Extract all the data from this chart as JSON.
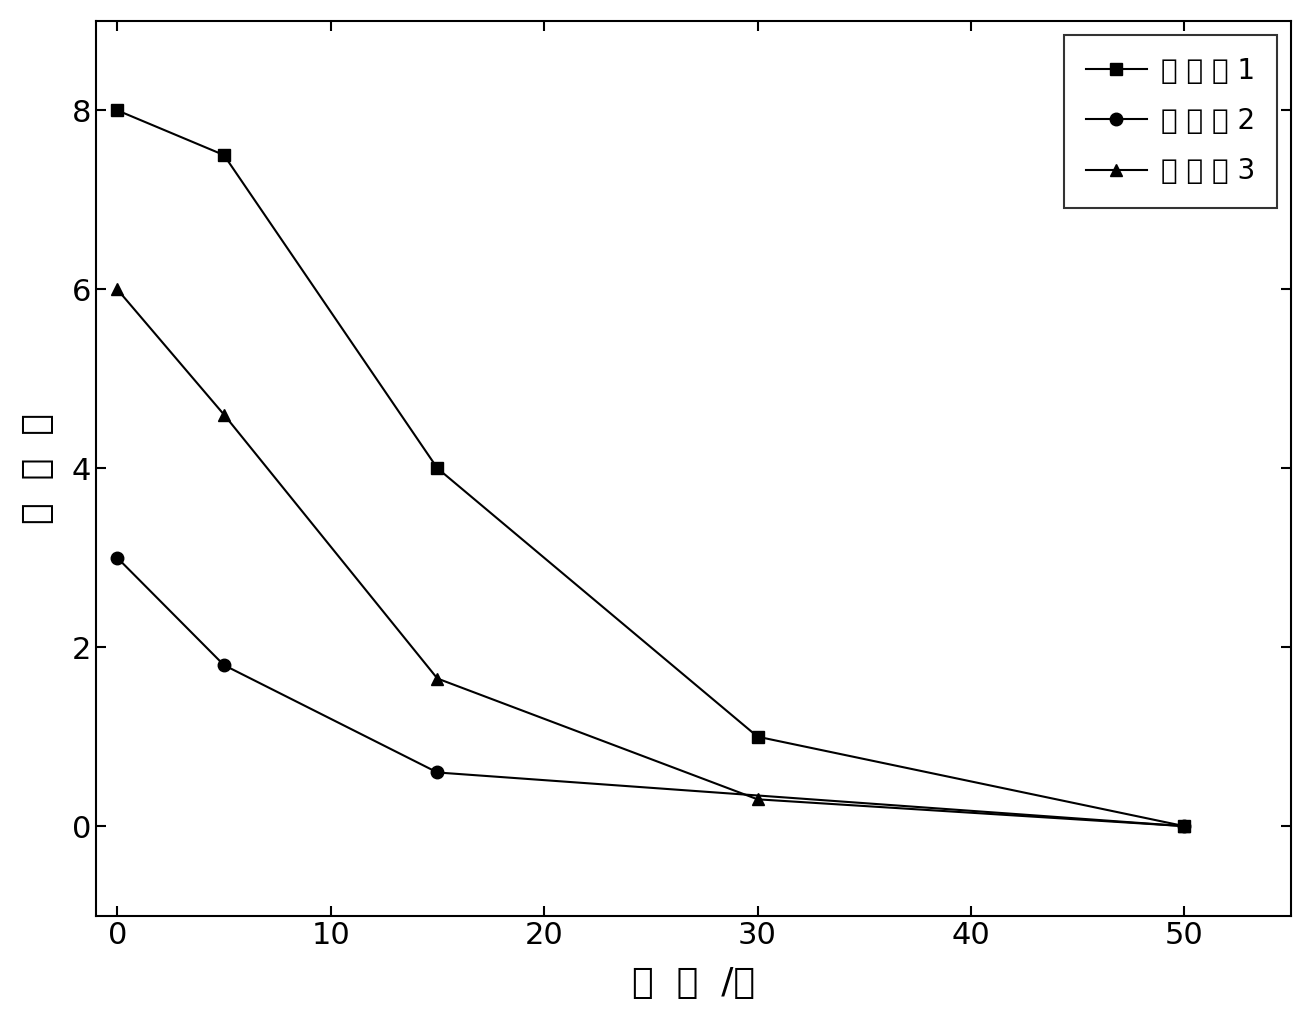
{
  "series": [
    {
      "x": [
        0,
        5,
        15,
        30,
        50
      ],
      "y": [
        8.0,
        7.5,
        4.0,
        1.0,
        0.0
      ],
      "marker": "s",
      "color": "#000000",
      "markersize": 9
    },
    {
      "x": [
        0,
        5,
        15,
        50
      ],
      "y": [
        3.0,
        1.8,
        0.6,
        0.0
      ],
      "marker": "o",
      "color": "#000000",
      "markersize": 9
    },
    {
      "x": [
        0,
        5,
        15,
        30,
        50
      ],
      "y": [
        6.0,
        4.6,
        1.65,
        0.3,
        0.0
      ],
      "marker": "^",
      "color": "#000000",
      "markersize": 9
    }
  ],
  "xlabel": "时  间  /天",
  "ylabel": "介  电  数",
  "xlim": [
    -1,
    55
  ],
  "ylim": [
    -1,
    9
  ],
  "xticks": [
    0,
    10,
    20,
    30,
    40,
    50
  ],
  "yticks": [
    0,
    2,
    4,
    6,
    8
  ],
  "legend_labels": [
    "实 施 例 1",
    "实 施 例 2",
    "实 施 例 3"
  ],
  "linewidth": 1.5,
  "xlabel_fontsize": 26,
  "ylabel_fontsize": 26,
  "tick_fontsize": 22,
  "legend_fontsize": 20,
  "background_color": "#ffffff"
}
